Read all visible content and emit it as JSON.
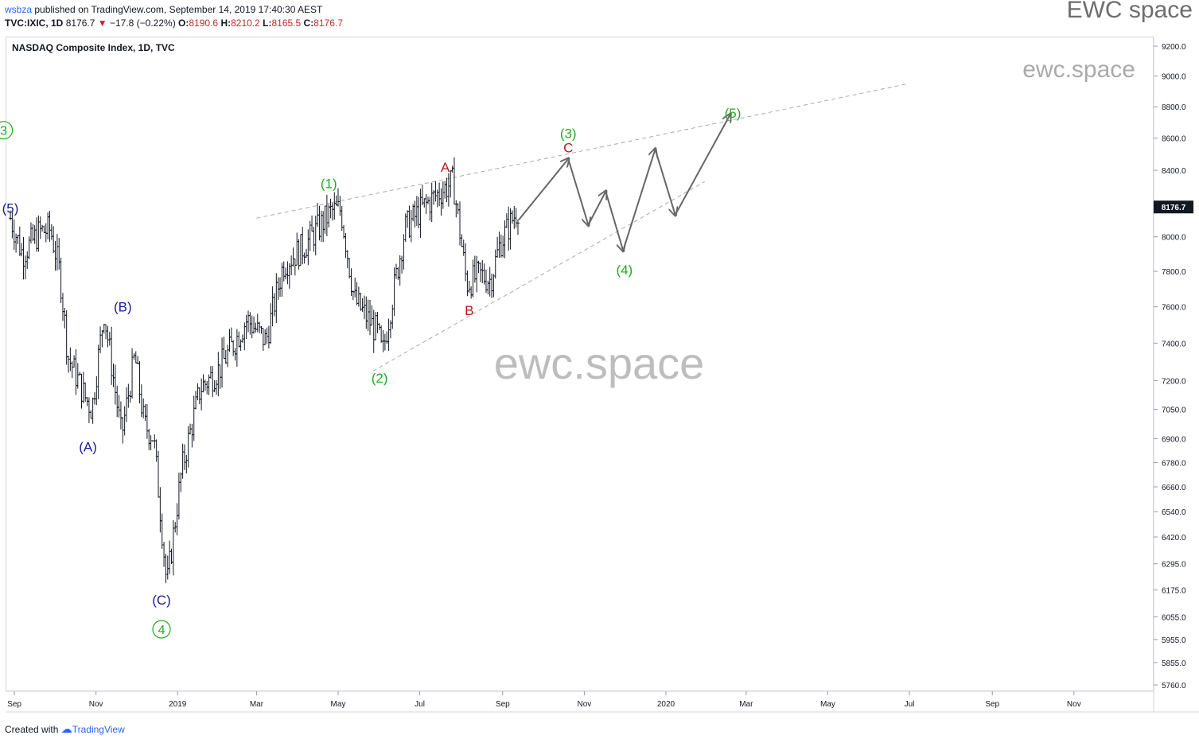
{
  "header": {
    "publisher": "wsbza",
    "published_text": "published on TradingView.com, September 14, 2019 17:40:30 AEST",
    "symbol": "TVC:IXIC, 1D",
    "last": "8176.7",
    "change": "−17.8 (−0.22%)",
    "o_label": "O:",
    "o": "8190.6",
    "h_label": "H:",
    "h": "8210.2",
    "l_label": "L:",
    "l": "8165.5",
    "c_label": "C:",
    "c": "8176.7"
  },
  "brand": "EWC space",
  "footer": {
    "created_with": "Created with",
    "tradingview": "TradingView"
  },
  "chart_data": {
    "type": "candlestick",
    "title": "NASDAQ Composite Index, 1D, TVC",
    "y_scale": "log",
    "ylim": [
      5700,
      9300
    ],
    "y_ticks": [
      "9200.0",
      "9000.0",
      "8800.0",
      "8600.0",
      "8400.0",
      "8200.0",
      "8000.0",
      "7800.0",
      "7600.0",
      "7400.0",
      "7200.0",
      "7050.0",
      "6900.0",
      "6780.0",
      "6660.0",
      "6540.0",
      "6420.0",
      "6295.0",
      "6175.0",
      "6055.0",
      "5955.0",
      "5855.0",
      "5760.0"
    ],
    "x_ticks": [
      "Sep",
      "Nov",
      "2019",
      "Mar",
      "May",
      "Jul",
      "Sep",
      "Nov",
      "2020",
      "Mar",
      "May",
      "Jul",
      "Sep",
      "Nov"
    ],
    "last_price_label": "8176.7",
    "watermarks": [
      "ewc.space",
      "ewc.space"
    ],
    "price_path": [
      [
        "2018-08-29",
        8110
      ],
      [
        "2018-09-07",
        7900
      ],
      [
        "2018-09-20",
        8030
      ],
      [
        "2018-09-28",
        8040
      ],
      [
        "2018-10-05",
        7790
      ],
      [
        "2018-10-11",
        7330
      ],
      [
        "2018-10-24",
        7110
      ],
      [
        "2018-10-29",
        7050
      ],
      [
        "2018-11-07",
        7570
      ],
      [
        "2018-11-20",
        6910
      ],
      [
        "2018-11-30",
        7330
      ],
      [
        "2018-12-07",
        6970
      ],
      [
        "2018-12-14",
        6910
      ],
      [
        "2018-12-24",
        6190
      ],
      [
        "2019-01-04",
        6740
      ],
      [
        "2019-01-18",
        7160
      ],
      [
        "2019-02-01",
        7260
      ],
      [
        "2019-02-22",
        7530
      ],
      [
        "2019-03-08",
        7410
      ],
      [
        "2019-03-21",
        7840
      ],
      [
        "2019-04-05",
        7940
      ],
      [
        "2019-04-26",
        8150
      ],
      [
        "2019-05-03",
        8160
      ],
      [
        "2019-05-13",
        7640
      ],
      [
        "2019-05-31",
        7450
      ],
      [
        "2019-06-03",
        7330
      ],
      [
        "2019-06-20",
        8050
      ],
      [
        "2019-07-03",
        8170
      ],
      [
        "2019-07-15",
        8260
      ],
      [
        "2019-07-26",
        8330
      ],
      [
        "2019-08-05",
        7730
      ],
      [
        "2019-08-15",
        7780
      ],
      [
        "2019-08-23",
        7750
      ],
      [
        "2019-08-30",
        7960
      ],
      [
        "2019-09-13",
        8176.7
      ]
    ],
    "projection_path": [
      [
        "2019-09-13",
        8100
      ],
      [
        "2019-10-20",
        8470
      ],
      [
        "2019-11-04",
        8070
      ],
      [
        "2019-11-17",
        8270
      ],
      [
        "2019-11-30",
        7920
      ],
      [
        "2019-12-24",
        8530
      ],
      [
        "2020-01-08",
        8130
      ],
      [
        "2020-02-18",
        8750
      ]
    ],
    "trendlines": [
      {
        "from": [
          "2019-03-01",
          8110
        ],
        "to": [
          "2020-06-30",
          8950
        ]
      },
      {
        "from": [
          "2019-05-27",
          7250
        ],
        "to": [
          "2020-01-30",
          8330
        ]
      }
    ],
    "annotations": [
      {
        "text": "3",
        "circled": true,
        "color": "#22aa22",
        "at": [
          "2018-08-24",
          8650
        ]
      },
      {
        "text": "(5)",
        "circled": false,
        "color": "#1a1a9c",
        "at": [
          "2018-08-29",
          8170
        ]
      },
      {
        "text": "(A)",
        "circled": false,
        "color": "#1a1a9c",
        "at": [
          "2018-10-26",
          6860
        ]
      },
      {
        "text": "(B)",
        "circled": false,
        "color": "#1a1a9c",
        "at": [
          "2018-11-21",
          7600
        ]
      },
      {
        "text": "(C)",
        "circled": false,
        "color": "#1a1a9c",
        "at": [
          "2018-12-20",
          6130
        ]
      },
      {
        "text": "4",
        "circled": true,
        "color": "#22aa22",
        "at": [
          "2018-12-20",
          6000
        ]
      },
      {
        "text": "(1)",
        "circled": false,
        "color": "#22aa22",
        "at": [
          "2019-04-24",
          8320
        ]
      },
      {
        "text": "(2)",
        "circled": false,
        "color": "#22aa22",
        "at": [
          "2019-06-01",
          7215
        ]
      },
      {
        "text": "A",
        "circled": false,
        "color": "#b71c1c",
        "at": [
          "2019-07-20",
          8420
        ]
      },
      {
        "text": "B",
        "circled": false,
        "color": "#b71c1c",
        "at": [
          "2019-08-07",
          7580
        ]
      },
      {
        "text": "(3)",
        "circled": false,
        "color": "#22aa22",
        "at": [
          "2019-10-20",
          8630
        ]
      },
      {
        "text": "C",
        "circled": false,
        "color": "#b71c1c",
        "at": [
          "2019-10-20",
          8540
        ]
      },
      {
        "text": "(4)",
        "circled": false,
        "color": "#22aa22",
        "at": [
          "2019-12-01",
          7810
        ]
      },
      {
        "text": "(5)",
        "circled": false,
        "color": "#22aa22",
        "at": [
          "2020-02-20",
          8760
        ]
      }
    ],
    "colors": {
      "bars": "#131722",
      "projection": "#666666",
      "trendline": "#aaaaaa",
      "price_tag": "#131722"
    }
  }
}
